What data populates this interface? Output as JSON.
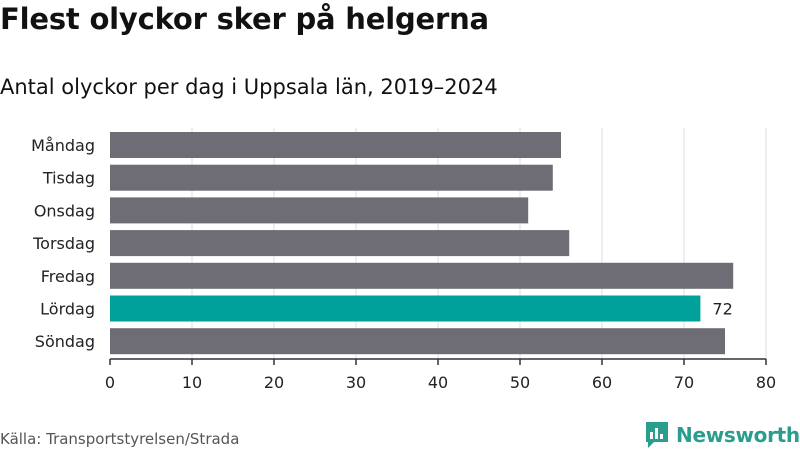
{
  "title": "Flest olyckor sker på helgerna",
  "subtitle": "Antal olyckor per dag i Uppsala län, 2019–2024",
  "source": "Källa: Transportstyrelsen/Strada",
  "brand": "Newsworthy",
  "colors": {
    "bar": "#6e6d75",
    "highlight": "#00a19a",
    "grid": "#dddddd",
    "axis": "#333333",
    "brand": "#2a9d8f"
  },
  "chart_data": {
    "type": "bar",
    "orientation": "horizontal",
    "categories": [
      "Måndag",
      "Tisdag",
      "Onsdag",
      "Torsdag",
      "Fredag",
      "Lördag",
      "Söndag"
    ],
    "values": [
      55,
      54,
      51,
      56,
      76,
      72,
      75
    ],
    "highlight_index": 5,
    "data_labels": [
      {
        "index": 5,
        "text": "72"
      }
    ],
    "xlim": [
      0,
      80
    ],
    "xticks": [
      0,
      10,
      20,
      30,
      40,
      50,
      60,
      70,
      80
    ],
    "grid": true
  }
}
